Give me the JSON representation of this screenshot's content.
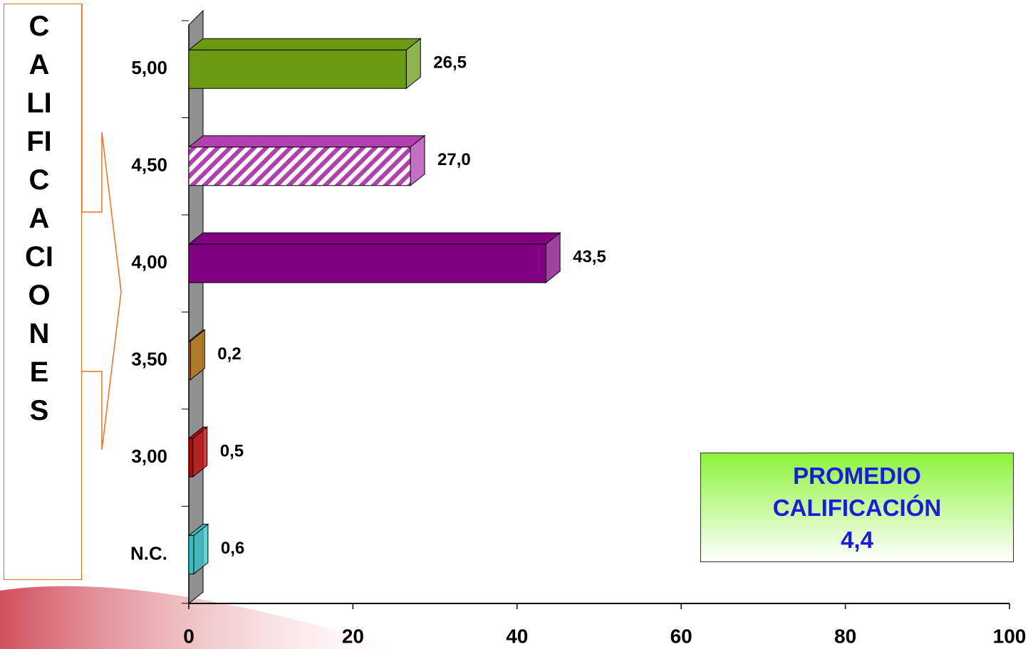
{
  "chart_data": {
    "type": "bar3d-horizontal",
    "side_label": "CALIFICACIONES",
    "categories": [
      "5,00",
      "4,50",
      "4,00",
      "3,50",
      "3,00",
      "N.C."
    ],
    "values": [
      26.5,
      27.0,
      43.5,
      0.2,
      0.5,
      0.6
    ],
    "value_labels": [
      "26,5",
      "27,0",
      "43,5",
      "0,2",
      "0,5",
      "0,6"
    ],
    "colors": [
      "#6b9b12",
      "#b040b0",
      "#800080",
      "#b8740c",
      "#c00000",
      "#2ec4c4"
    ],
    "hatched": [
      false,
      true,
      false,
      false,
      false,
      false
    ],
    "xlim": [
      0,
      100
    ],
    "xticks": [
      0,
      20,
      40,
      60,
      80,
      100
    ],
    "annotation": [
      "PROMEDIO",
      "CALIFICACIÓN",
      "4,4"
    ]
  }
}
